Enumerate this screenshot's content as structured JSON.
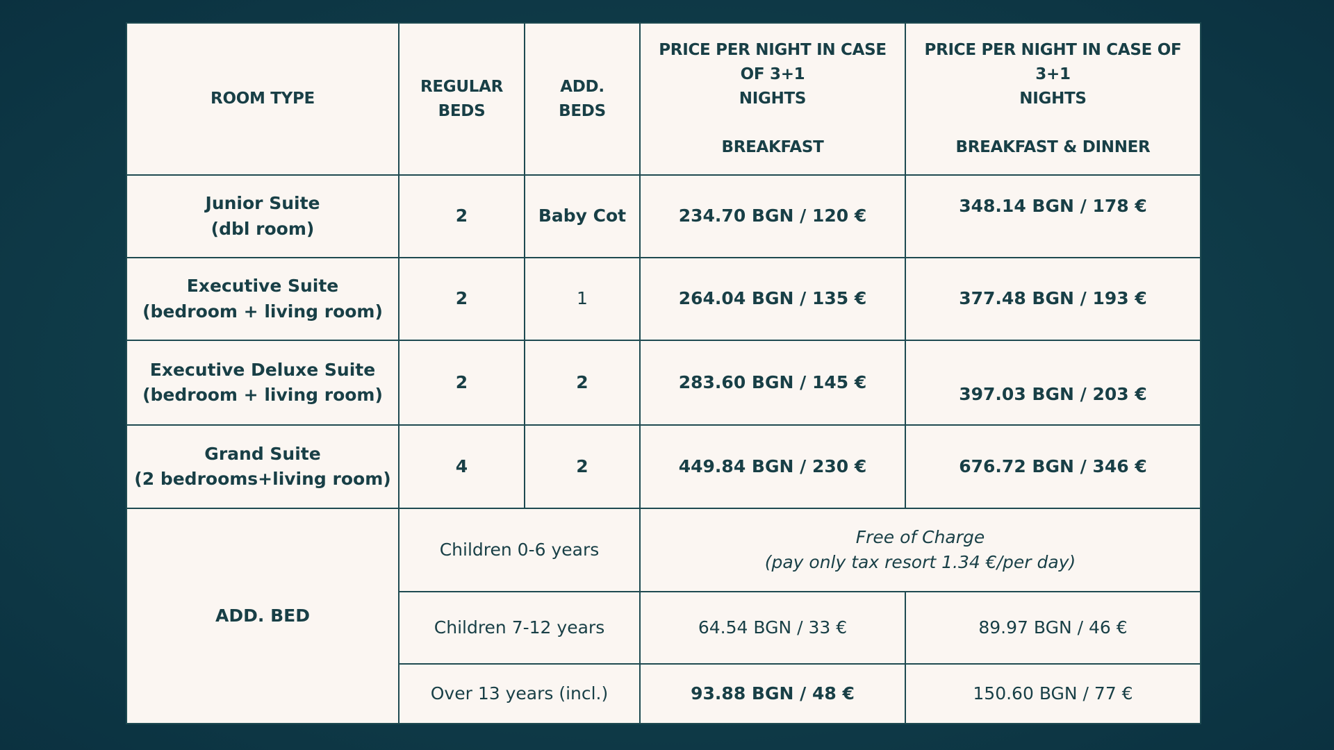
{
  "table": {
    "header": [
      "ROOM TYPE",
      "REGULAR\nBEDS",
      "ADD.\nBEDS",
      "PRICE PER NIGHT IN CASE\nOF 3+1\nNIGHTS\n\nBREAKFAST",
      "PRICE PER NIGHT IN CASE OF\n3+1\nNIGHTS\n\nBREAKFAST & DINNER"
    ],
    "rows": [
      [
        "Junior Suite\n(dbl room)",
        "2",
        "Baby Cot",
        "234.70 BGN / 120 €",
        "348.14 BGN / 178 €"
      ],
      [
        "Executive Suite\n(bedroom + living room)",
        "2",
        "1",
        "264.04 BGN / 135 €",
        "377.48 BGN / 193 €"
      ],
      [
        "Executive Deluxe Suite\n(bedroom + living room)",
        "2",
        "2",
        "283.60 BGN / 145 €",
        "397.03 BGN / 203 €"
      ],
      [
        "Grand Suite\n(2 bedrooms+living room)",
        "4",
        "2",
        "449.84 BGN / 230 €",
        "676.72 BGN / 346 €"
      ]
    ],
    "add_bed": {
      "label": "ADD. BED",
      "free_of_charge": "Free of Charge\n(pay only tax resort 1.34 €/per day)",
      "rows": [
        {
          "age": "Children 0-6 years"
        },
        {
          "age": "Children 7-12 years",
          "breakfast": "64.54 BGN / 33 €",
          "dinner": "89.97 BGN / 46 €"
        },
        {
          "age": "Over 13 years (incl.)",
          "breakfast": "93.88 BGN / 48 €",
          "dinner": "150.60 BGN / 77 €"
        }
      ]
    }
  }
}
